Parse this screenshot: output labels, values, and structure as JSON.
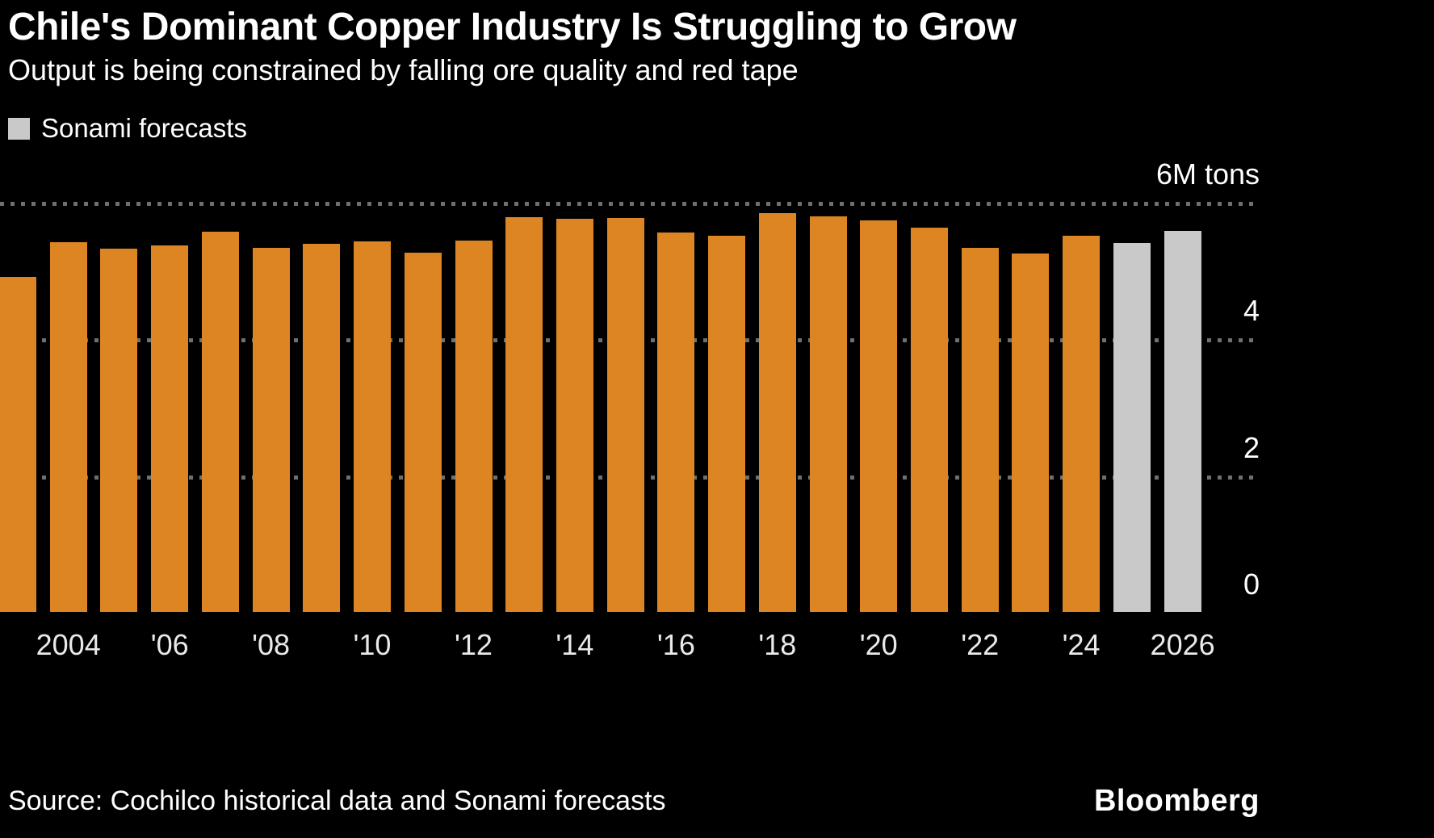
{
  "footer": {
    "source": "Source: Cochilco historical data and Sonami forecasts",
    "brand": "Bloomberg"
  },
  "colors": {
    "background": "#000000",
    "bar": "#DC8522",
    "forecast_bar": "#C9C9C9",
    "gridline": "#6F6F6F",
    "title_text": "#FFFFFF",
    "axis_text": "#E9E9E9"
  },
  "chart_data": {
    "type": "bar",
    "title": "Chile's Dominant Copper Industry Is Struggling to Grow",
    "subtitle": "Output is being constrained by falling ore quality and red tape",
    "unit": "million metric tons of copper",
    "ylim": [
      0,
      6
    ],
    "grid": "horizontal dotted",
    "legend_position": "top-left",
    "legend": [
      {
        "label": "Sonami forecasts",
        "color": "#C9C9C9"
      }
    ],
    "forecast_from_year": 2025,
    "categories": [
      2003,
      2004,
      2005,
      2006,
      2007,
      2008,
      2009,
      2010,
      2011,
      2012,
      2013,
      2014,
      2015,
      2016,
      2017,
      2018,
      2019,
      2020,
      2021,
      2022,
      2023,
      2024,
      2025,
      2026
    ],
    "values": [
      4.9,
      5.41,
      5.32,
      5.36,
      5.56,
      5.33,
      5.39,
      5.42,
      5.26,
      5.43,
      5.78,
      5.75,
      5.76,
      5.55,
      5.5,
      5.83,
      5.79,
      5.73,
      5.62,
      5.33,
      5.25,
      5.5,
      5.4,
      5.58
    ],
    "yticks": [
      {
        "value": 6,
        "label": "6M tons",
        "gridline": true
      },
      {
        "value": 4,
        "label": "4",
        "gridline": true
      },
      {
        "value": 2,
        "label": "2",
        "gridline": true
      },
      {
        "value": 0,
        "label": "0",
        "gridline": false
      }
    ],
    "xticks": [
      {
        "year": 2004,
        "label": "2004"
      },
      {
        "year": 2006,
        "label": "'06"
      },
      {
        "year": 2008,
        "label": "'08"
      },
      {
        "year": 2010,
        "label": "'10"
      },
      {
        "year": 2012,
        "label": "'12"
      },
      {
        "year": 2014,
        "label": "'14"
      },
      {
        "year": 2016,
        "label": "'16"
      },
      {
        "year": 2018,
        "label": "'18"
      },
      {
        "year": 2020,
        "label": "'20"
      },
      {
        "year": 2022,
        "label": "'22"
      },
      {
        "year": 2024,
        "label": "'24"
      },
      {
        "year": 2026,
        "label": "2026"
      }
    ]
  }
}
